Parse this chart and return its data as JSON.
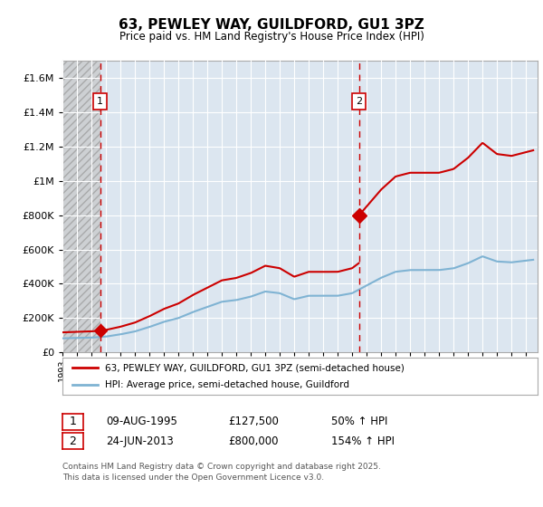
{
  "title": "63, PEWLEY WAY, GUILDFORD, GU1 3PZ",
  "subtitle": "Price paid vs. HM Land Registry's House Price Index (HPI)",
  "background_color": "#ffffff",
  "plot_bg_color": "#dce6f0",
  "grid_color": "#ffffff",
  "purchase1_date": 1995.6,
  "purchase1_price": 127500,
  "purchase2_date": 2013.48,
  "purchase2_price": 800000,
  "legend_line1": "63, PEWLEY WAY, GUILDFORD, GU1 3PZ (semi-detached house)",
  "legend_line2": "HPI: Average price, semi-detached house, Guildford",
  "table_row1_num": "1",
  "table_row1_date": "09-AUG-1995",
  "table_row1_price": "£127,500",
  "table_row1_hpi": "50% ↑ HPI",
  "table_row2_num": "2",
  "table_row2_date": "24-JUN-2013",
  "table_row2_price": "£800,000",
  "table_row2_hpi": "154% ↑ HPI",
  "footnote": "Contains HM Land Registry data © Crown copyright and database right 2025.\nThis data is licensed under the Open Government Licence v3.0.",
  "ylim_max": 1700000,
  "xlim_start": 1993.0,
  "xlim_end": 2025.8,
  "line_color_property": "#cc0000",
  "line_color_hpi": "#7fb3d3",
  "hatch_fill_color": "#c8c8c8",
  "marker_color": "#cc0000"
}
